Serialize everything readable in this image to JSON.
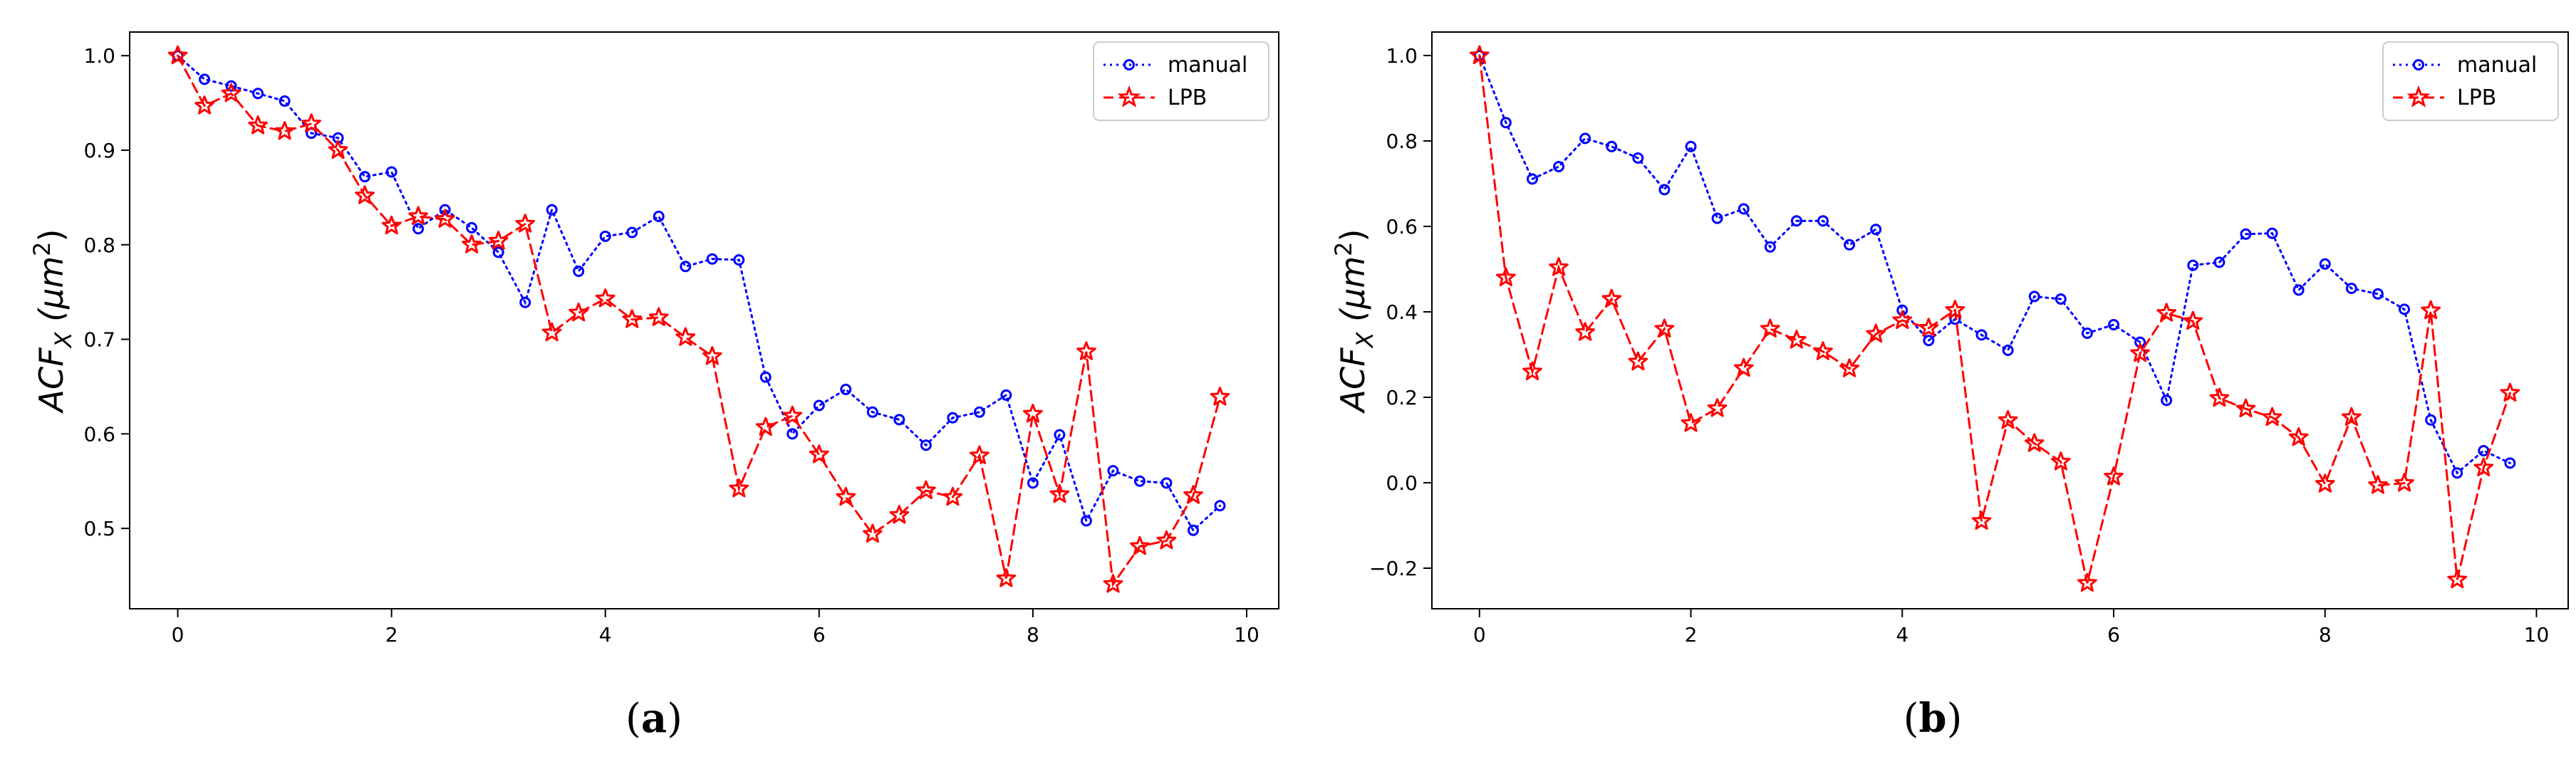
{
  "chart_data": [
    {
      "type": "line",
      "panel_label": "(a)",
      "ylabel_prefix": "ACF",
      "ylabel_sub": "X",
      "ylabel_unit": "(μm",
      "ylabel_sup": "2",
      "ylabel_close": ")",
      "xlim": [
        -0.45,
        10.3
      ],
      "ylim": [
        0.415,
        1.025
      ],
      "xticks": [
        0,
        2,
        4,
        6,
        8,
        10
      ],
      "yticks": [
        0.5,
        0.6,
        0.7,
        0.8,
        0.9,
        1.0
      ],
      "ytick_labels": [
        "0.5",
        "0.6",
        "0.7",
        "0.8",
        "0.9",
        "1.0"
      ],
      "legend_position": "top-right",
      "series": [
        {
          "name": "manual",
          "color": "#0000ff",
          "style": "dotted",
          "marker": "circle",
          "x": [
            0,
            0.25,
            0.5,
            0.75,
            1,
            1.25,
            1.5,
            1.75,
            2,
            2.25,
            2.5,
            2.75,
            3,
            3.25,
            3.5,
            3.75,
            4,
            4.25,
            4.5,
            4.75,
            5,
            5.25,
            5.5,
            5.75,
            6,
            6.25,
            6.5,
            6.75,
            7,
            7.25,
            7.5,
            7.75,
            8,
            8.25,
            8.5,
            8.75,
            9,
            9.25,
            9.5,
            9.75
          ],
          "values": [
            1.0,
            0.975,
            0.968,
            0.96,
            0.952,
            0.918,
            0.913,
            0.872,
            0.877,
            0.817,
            0.837,
            0.818,
            0.792,
            0.739,
            0.837,
            0.772,
            0.809,
            0.813,
            0.83,
            0.777,
            0.785,
            0.784,
            0.66,
            0.6,
            0.63,
            0.647,
            0.623,
            0.615,
            0.588,
            0.617,
            0.623,
            0.641,
            0.548,
            0.599,
            0.508,
            0.561,
            0.55,
            0.548,
            0.498,
            0.524
          ]
        },
        {
          "name": "LPB",
          "color": "#ff0000",
          "style": "dashed",
          "marker": "star",
          "x": [
            0,
            0.25,
            0.5,
            0.75,
            1,
            1.25,
            1.5,
            1.75,
            2,
            2.25,
            2.5,
            2.75,
            3,
            3.25,
            3.5,
            3.75,
            4,
            4.25,
            4.5,
            4.75,
            5,
            5.25,
            5.5,
            5.75,
            6,
            6.25,
            6.5,
            6.75,
            7,
            7.25,
            7.5,
            7.75,
            8,
            8.25,
            8.5,
            8.75,
            9,
            9.25,
            9.5,
            9.75
          ],
          "values": [
            1.0,
            0.947,
            0.96,
            0.926,
            0.92,
            0.928,
            0.9,
            0.852,
            0.82,
            0.83,
            0.827,
            0.8,
            0.804,
            0.822,
            0.707,
            0.728,
            0.743,
            0.721,
            0.723,
            0.702,
            0.682,
            0.542,
            0.607,
            0.619,
            0.578,
            0.533,
            0.494,
            0.514,
            0.54,
            0.533,
            0.577,
            0.447,
            0.621,
            0.536,
            0.687,
            0.441,
            0.481,
            0.487,
            0.535,
            0.639
          ]
        }
      ]
    },
    {
      "type": "line",
      "panel_label": "(b)",
      "ylabel_prefix": "ACF",
      "ylabel_sub": "X",
      "ylabel_unit": "(μm",
      "ylabel_sup": "2",
      "ylabel_close": ")",
      "xlim": [
        -0.45,
        10.3
      ],
      "ylim": [
        -0.295,
        1.055
      ],
      "xticks": [
        0,
        2,
        4,
        6,
        8,
        10
      ],
      "yticks": [
        -0.2,
        0.0,
        0.2,
        0.4,
        0.6,
        0.8,
        1.0
      ],
      "ytick_labels": [
        "−0.2",
        "0.0",
        "0.2",
        "0.4",
        "0.6",
        "0.8",
        "1.0"
      ],
      "legend_position": "top-right",
      "series": [
        {
          "name": "manual",
          "color": "#0000ff",
          "style": "dotted",
          "marker": "circle",
          "x": [
            0,
            0.25,
            0.5,
            0.75,
            1,
            1.25,
            1.5,
            1.75,
            2,
            2.25,
            2.5,
            2.75,
            3,
            3.25,
            3.5,
            3.75,
            4,
            4.25,
            4.5,
            4.75,
            5,
            5.25,
            5.5,
            5.75,
            6,
            6.25,
            6.5,
            6.75,
            7,
            7.25,
            7.5,
            7.75,
            8,
            8.25,
            8.5,
            8.75,
            9,
            9.25,
            9.5,
            9.75
          ],
          "values": [
            1.0,
            0.843,
            0.711,
            0.74,
            0.806,
            0.787,
            0.76,
            0.686,
            0.787,
            0.619,
            0.641,
            0.552,
            0.613,
            0.613,
            0.557,
            0.593,
            0.404,
            0.333,
            0.383,
            0.346,
            0.31,
            0.436,
            0.43,
            0.35,
            0.37,
            0.329,
            0.193,
            0.509,
            0.516,
            0.582,
            0.584,
            0.451,
            0.512,
            0.455,
            0.442,
            0.406,
            0.147,
            0.023,
            0.075,
            0.046
          ]
        },
        {
          "name": "LPB",
          "color": "#ff0000",
          "style": "dashed",
          "marker": "star",
          "x": [
            0,
            0.25,
            0.5,
            0.75,
            1,
            1.25,
            1.5,
            1.75,
            2,
            2.25,
            2.5,
            2.75,
            3,
            3.25,
            3.5,
            3.75,
            4,
            4.25,
            4.5,
            4.75,
            5,
            5.25,
            5.5,
            5.75,
            6,
            6.25,
            6.5,
            6.75,
            7,
            7.25,
            7.5,
            7.75,
            8,
            8.25,
            8.5,
            8.75,
            9,
            9.25,
            9.5,
            9.75
          ],
          "values": [
            1.0,
            0.48,
            0.26,
            0.504,
            0.352,
            0.43,
            0.283,
            0.36,
            0.139,
            0.174,
            0.268,
            0.36,
            0.334,
            0.307,
            0.267,
            0.348,
            0.38,
            0.362,
            0.404,
            -0.09,
            0.146,
            0.092,
            0.049,
            -0.235,
            0.014,
            0.303,
            0.397,
            0.378,
            0.198,
            0.173,
            0.153,
            0.106,
            -0.003,
            0.153,
            -0.006,
            -0.001,
            0.403,
            -0.227,
            0.035,
            0.21
          ]
        }
      ]
    }
  ]
}
